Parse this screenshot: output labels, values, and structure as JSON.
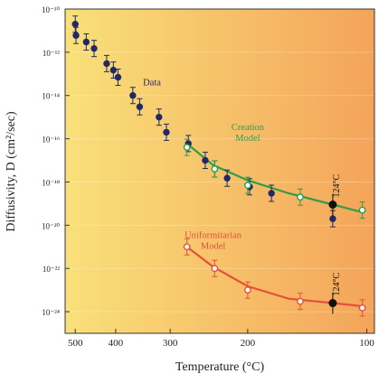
{
  "chart_data": {
    "type": "scatter",
    "title": "",
    "xlabel": "Temperature (°C)",
    "ylabel": "Diffusivity, D (cm²/sec)",
    "x_scale": "reciprocal-kelvin",
    "y_scale": "log",
    "xlim": [
      530,
      95
    ],
    "ylim": [
      1e-25,
      1e-10
    ],
    "x_ticks": [
      500,
      400,
      300,
      200,
      100
    ],
    "y_ticks": [
      1e-10,
      1e-12,
      1e-14,
      1e-16,
      1e-18,
      1e-20,
      1e-22,
      1e-24
    ],
    "y_tick_labels": [
      "10⁻¹⁰",
      "10⁻¹²",
      "10⁻¹⁴",
      "10⁻¹⁶",
      "10⁻¹⁸",
      "10⁻²⁰",
      "10⁻²²",
      "10⁻²⁴"
    ],
    "background_gradient": [
      "#f9e07a",
      "#f4a45a"
    ],
    "series": [
      {
        "name": "Data",
        "marker": "filled-circle",
        "color": "#1f2a66",
        "points": [
          {
            "x": 500,
            "y": 2e-11
          },
          {
            "x": 498,
            "y": 6e-12
          },
          {
            "x": 470,
            "y": 3e-12
          },
          {
            "x": 450,
            "y": 1.5e-12
          },
          {
            "x": 420,
            "y": 3e-13
          },
          {
            "x": 405,
            "y": 1.5e-13
          },
          {
            "x": 395,
            "y": 7e-14
          },
          {
            "x": 365,
            "y": 1e-14
          },
          {
            "x": 352,
            "y": 3e-15
          },
          {
            "x": 318,
            "y": 1e-15
          },
          {
            "x": 306,
            "y": 2e-16
          },
          {
            "x": 273,
            "y": 6e-17
          },
          {
            "x": 250,
            "y": 1e-17
          },
          {
            "x": 238,
            "y": 4e-18
          },
          {
            "x": 223,
            "y": 1.5e-18
          },
          {
            "x": 198,
            "y": 6e-19
          },
          {
            "x": 176,
            "y": 3e-19
          },
          {
            "x": 124,
            "y": 2e-20
          }
        ]
      },
      {
        "name": "Creation Model",
        "marker": "open-circle",
        "color": "#2e9e4a",
        "label_lines": [
          "Creation",
          "Model"
        ],
        "points": [
          {
            "x": 275,
            "y": 4e-17
          },
          {
            "x": 238,
            "y": 4e-18
          },
          {
            "x": 200,
            "y": 7e-19
          },
          {
            "x": 150,
            "y": 2e-19
          },
          {
            "x": 103,
            "y": 5e-20
          }
        ],
        "curve": [
          {
            "x": 275,
            "y": 6e-17
          },
          {
            "x": 240,
            "y": 6e-18
          },
          {
            "x": 200,
            "y": 1.2e-18
          },
          {
            "x": 160,
            "y": 3e-19
          },
          {
            "x": 124,
            "y": 9e-20
          },
          {
            "x": 103,
            "y": 4e-20
          }
        ]
      },
      {
        "name": "Uniformitarian Model",
        "marker": "open-circle",
        "color": "#e5503a",
        "label_lines": [
          "Uniformitarian",
          "Model"
        ],
        "points": [
          {
            "x": 275,
            "y": 1e-21
          },
          {
            "x": 238,
            "y": 1e-22
          },
          {
            "x": 200,
            "y": 1e-23
          },
          {
            "x": 150,
            "y": 3e-24
          },
          {
            "x": 103,
            "y": 1.5e-24
          }
        ],
        "curve": [
          {
            "x": 275,
            "y": 1e-21
          },
          {
            "x": 240,
            "y": 1.2e-22
          },
          {
            "x": 200,
            "y": 1.5e-23
          },
          {
            "x": 160,
            "y": 4e-24
          },
          {
            "x": 124,
            "y": 2.5e-24
          },
          {
            "x": 103,
            "y": 1.8e-24
          }
        ]
      }
    ],
    "highlight_points": [
      {
        "x": 124,
        "y": 9e-20,
        "label": "124°C"
      },
      {
        "x": 124,
        "y": 2.5e-24,
        "label": "124°C"
      }
    ]
  }
}
